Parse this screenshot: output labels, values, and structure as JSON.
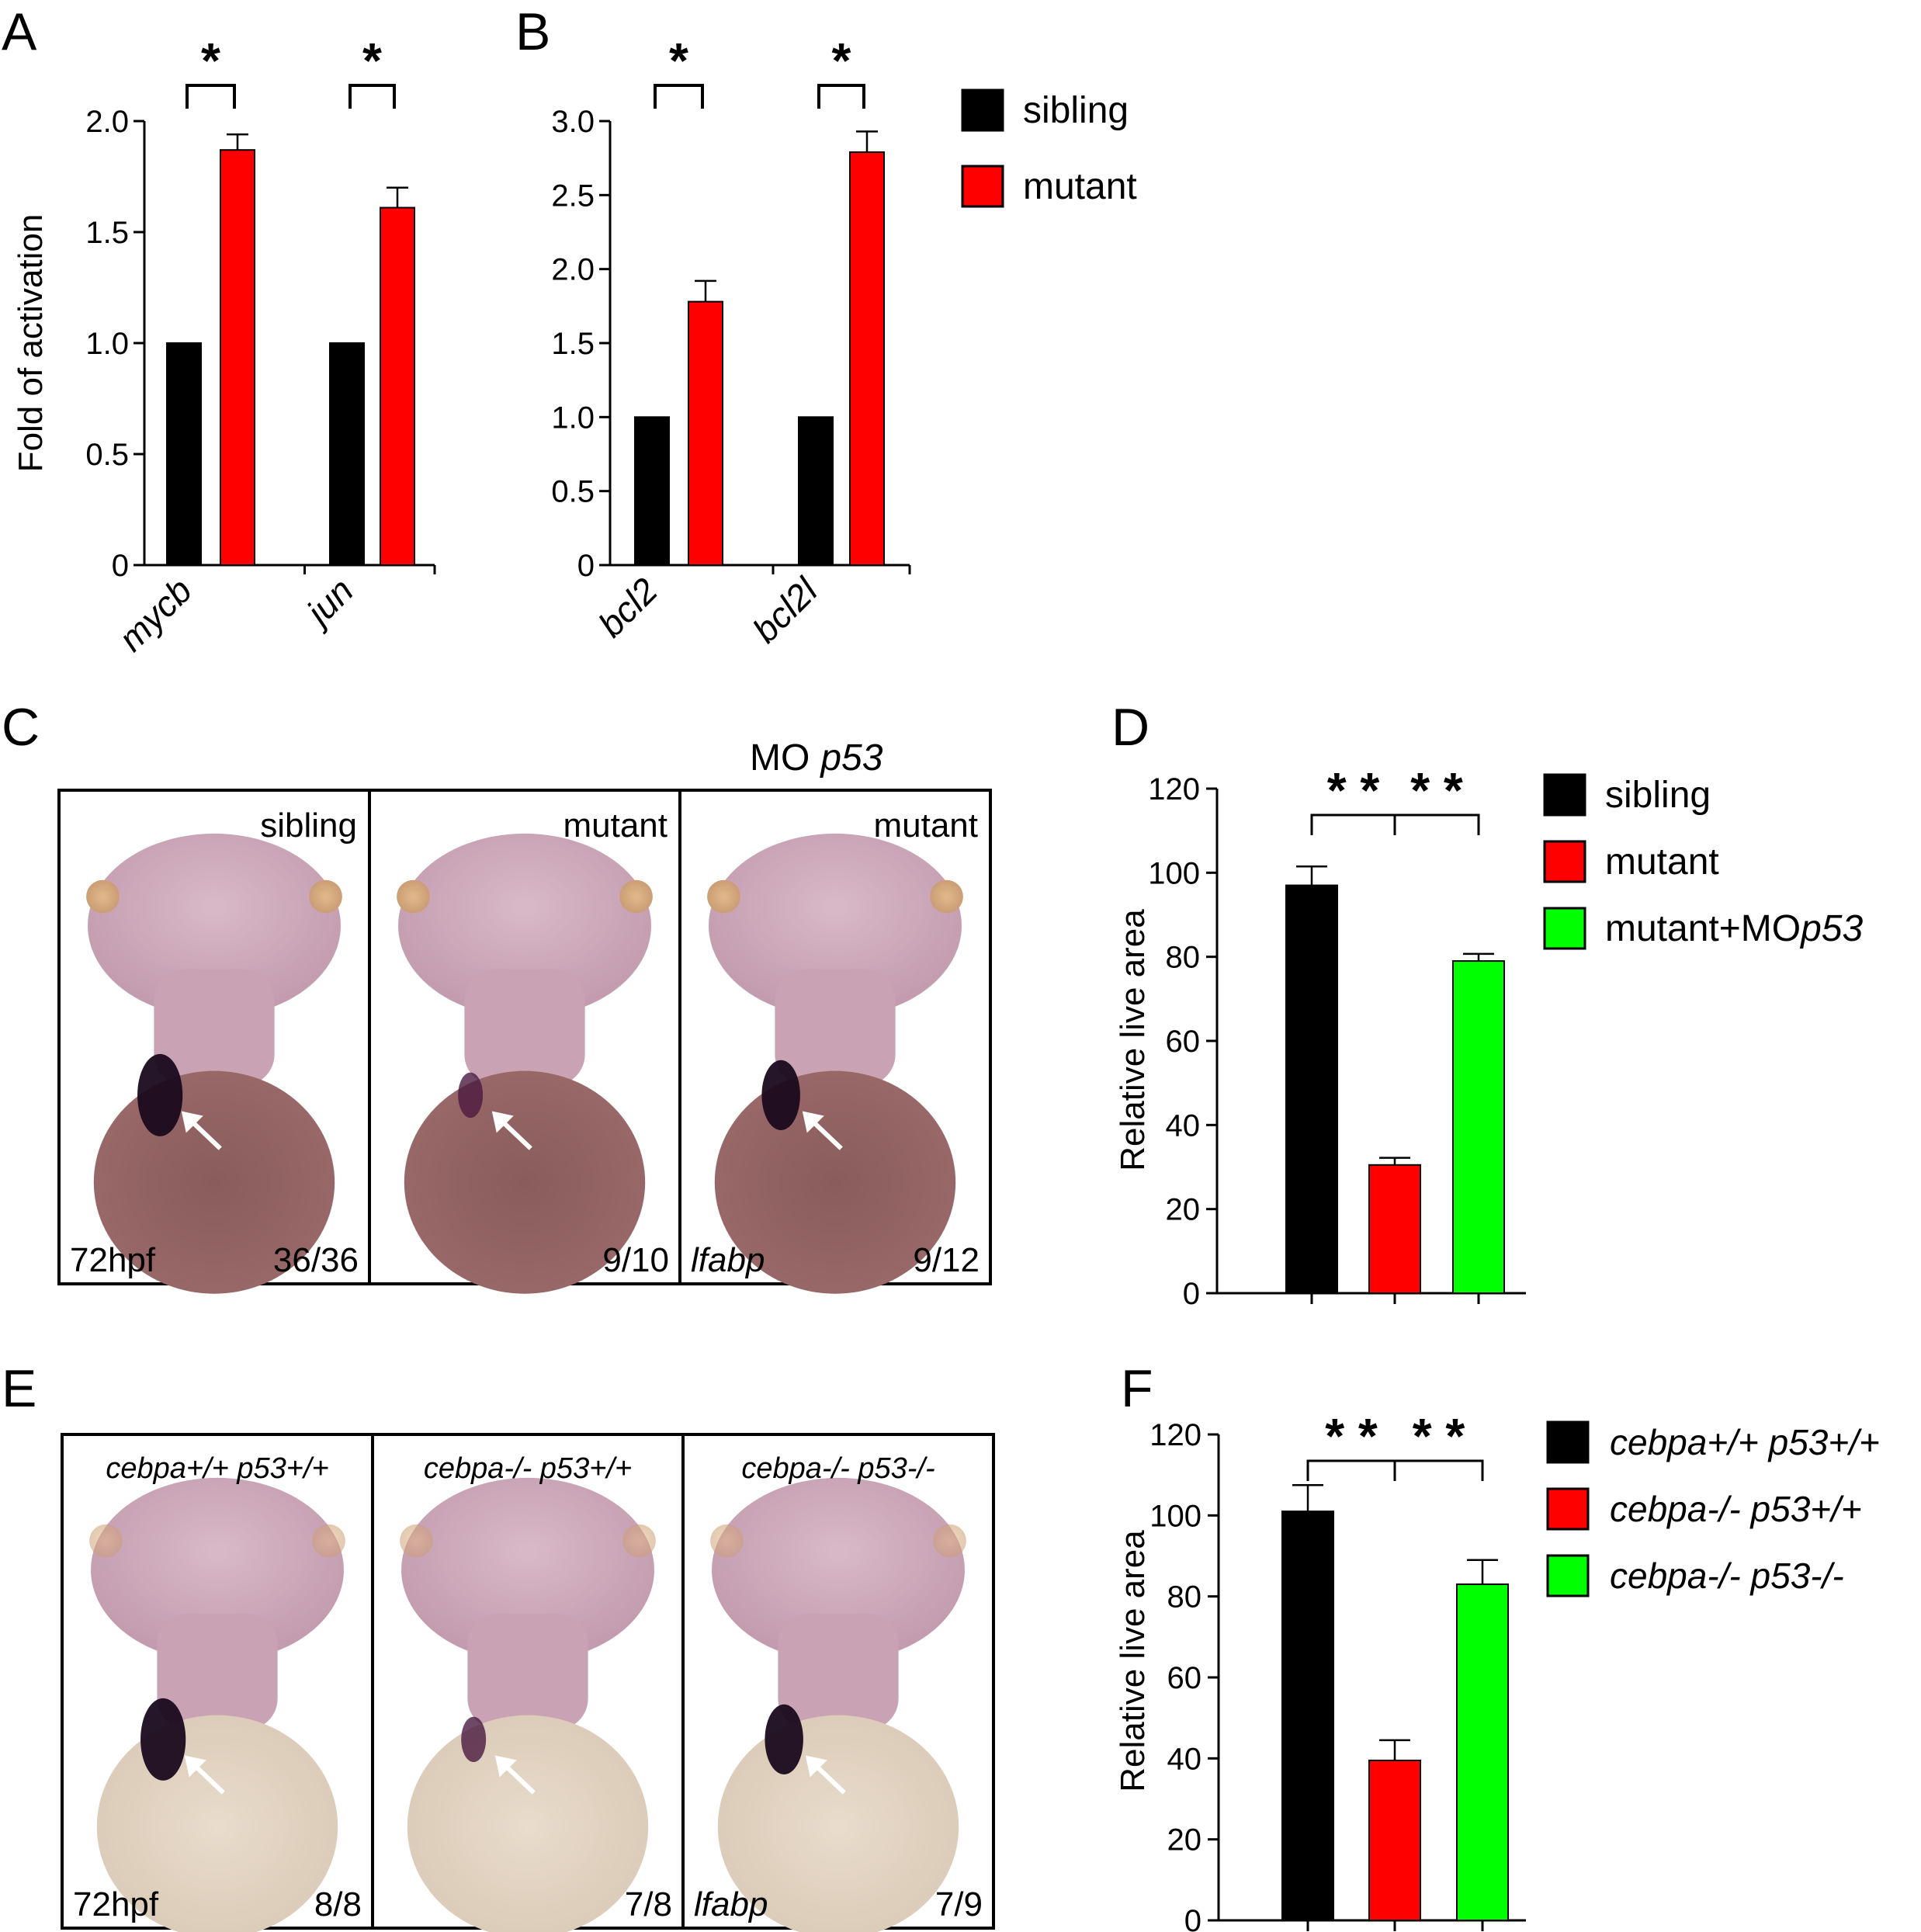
{
  "panels": {
    "A": "A",
    "B": "B",
    "C": "C",
    "D": "D",
    "E": "E",
    "F": "F"
  },
  "legends": {
    "AB": [
      {
        "label": "sibling",
        "color": "#000000"
      },
      {
        "label": "mutant",
        "color": "#ff0000"
      }
    ],
    "D": [
      {
        "label": "sibling",
        "color": "#000000"
      },
      {
        "label": "mutant",
        "color": "#ff0000"
      },
      {
        "label": "mutant+MO",
        "label_italic": "p53",
        "color": "#00ff00"
      }
    ],
    "F": [
      {
        "label": "cebpa+/+ p53+/+",
        "color": "#000000"
      },
      {
        "label": "cebpa-/- p53+/+",
        "color": "#ff0000"
      },
      {
        "label": "cebpa-/- p53-/-",
        "color": "#00ff00"
      }
    ]
  },
  "panel_C": {
    "header": "MO",
    "header_italic": "p53",
    "images": [
      {
        "label": "sibling",
        "stage": "72hpf",
        "count": "36/36",
        "stain": "dark",
        "icon": "arrow-icon"
      },
      {
        "label": "mutant",
        "stage": "",
        "count": "9/10",
        "stain": "weak",
        "icon": "arrow-icon"
      },
      {
        "label": "mutant",
        "probe": "lfabp",
        "count": "9/12",
        "stain": "medium",
        "icon": "arrow-icon"
      }
    ]
  },
  "panel_E": {
    "images": [
      {
        "label": "cebpa+/+ p53+/+",
        "stage": "72hpf",
        "count": "8/8",
        "stain": "dark",
        "icon": "arrow-icon"
      },
      {
        "label": "cebpa-/- p53+/+",
        "stage": "",
        "count": "7/8",
        "stain": "weak",
        "icon": "arrow-icon"
      },
      {
        "label": "cebpa-/- p53-/-",
        "probe": "lfabp",
        "count": "7/9",
        "stain": "medium",
        "icon": "arrow-icon"
      }
    ]
  },
  "chart_data": [
    {
      "id": "A",
      "type": "bar",
      "categories": [
        "mycb",
        "jun"
      ],
      "series": [
        {
          "name": "sibling",
          "values": [
            1.0,
            1.0
          ],
          "errors": [
            0,
            0
          ],
          "color": "#000000"
        },
        {
          "name": "mutant",
          "values": [
            1.87,
            1.61
          ],
          "errors": [
            0.07,
            0.09
          ],
          "color": "#ff0000"
        }
      ],
      "ylabel": "Fold of activation",
      "ylim": [
        0,
        2.0
      ],
      "yticks": [
        "0",
        "0.5",
        "1.0",
        "1.5",
        "2.0"
      ],
      "significance": [
        "*",
        "*"
      ]
    },
    {
      "id": "B",
      "type": "bar",
      "categories": [
        "bcl2",
        "bcl2l"
      ],
      "series": [
        {
          "name": "sibling",
          "values": [
            1.0,
            1.0
          ],
          "errors": [
            0,
            0
          ],
          "color": "#000000"
        },
        {
          "name": "mutant",
          "values": [
            1.78,
            2.79
          ],
          "errors": [
            0.14,
            0.14
          ],
          "color": "#ff0000"
        }
      ],
      "ylabel": "",
      "ylim": [
        0,
        3.0
      ],
      "yticks": [
        "0",
        "0.5",
        "1.0",
        "1.5",
        "2.0",
        "2.5",
        "3.0"
      ],
      "significance": [
        "*",
        "*"
      ]
    },
    {
      "id": "D",
      "type": "bar",
      "categories": [
        "sibling",
        "mutant",
        "mutant+MOp53"
      ],
      "values": [
        97,
        30.5,
        79
      ],
      "errors": [
        4.5,
        1.7,
        1.7
      ],
      "colors": [
        "#000000",
        "#ff0000",
        "#00ff00"
      ],
      "ylabel": "Relative live area",
      "ylim": [
        0,
        120
      ],
      "yticks": [
        "0",
        "20",
        "40",
        "60",
        "80",
        "100",
        "120"
      ],
      "significance": [
        "* *",
        "* *"
      ]
    },
    {
      "id": "F",
      "type": "bar",
      "categories": [
        "cebpa+/+ p53+/+",
        "cebpa-/- p53+/+",
        "cebpa-/- p53-/-"
      ],
      "values": [
        101,
        39.5,
        83
      ],
      "errors": [
        6.5,
        5,
        6
      ],
      "colors": [
        "#000000",
        "#ff0000",
        "#00ff00"
      ],
      "ylabel": "Relative live area",
      "ylim": [
        0,
        120
      ],
      "yticks": [
        "0",
        "20",
        "40",
        "60",
        "80",
        "100",
        "120"
      ],
      "significance": [
        "* *",
        "* *"
      ]
    }
  ]
}
